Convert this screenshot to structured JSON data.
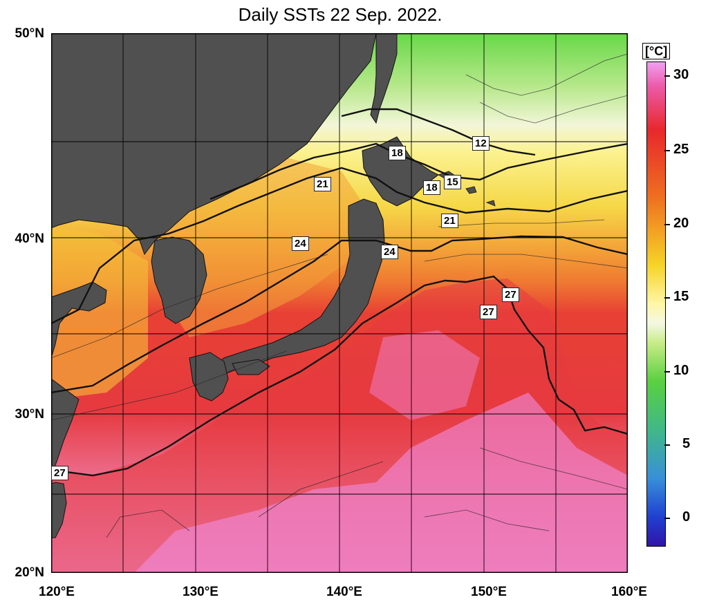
{
  "title": "Daily SSTs 22 Sep. 2022.",
  "lat_labels": [
    "50°N",
    "40°N",
    "30°N",
    "20°N"
  ],
  "lon_labels": [
    "120°E",
    "130°E",
    "140°E",
    "150°E",
    "160°E"
  ],
  "contour_labels": [
    "27",
    "24",
    "21",
    "18",
    "24",
    "21",
    "18",
    "15",
    "12",
    "27",
    "27"
  ],
  "colorbar": {
    "unit": "[°C]",
    "ticks": [
      "30",
      "25",
      "20",
      "15",
      "10",
      "5",
      "0"
    ]
  },
  "colors": {
    "land": "#505050",
    "warm": "#e8303a",
    "hot": "#f08ce0",
    "cool": "#f6d84c",
    "cold": "#6ed058"
  }
}
